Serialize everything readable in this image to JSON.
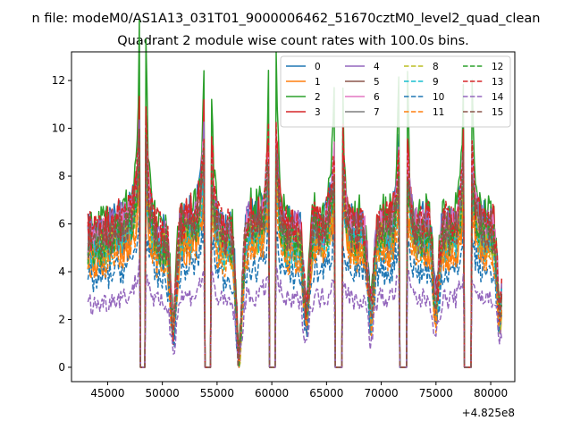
{
  "chart_data": {
    "type": "line",
    "suptitle": "n file: modeM0/AS1A13_031T01_9000006462_51670cztM0_level2_quad_clean",
    "title": "Quadrant 2 module wise count rates with 100.0s bins.",
    "xlabel": "",
    "ylabel": "",
    "x_offset_label": "+4.825e8",
    "xlim": [
      41700,
      82200
    ],
    "ylim": [
      -0.6,
      13.2
    ],
    "x_ticks": [
      45000,
      50000,
      55000,
      60000,
      65000,
      70000,
      75000,
      80000
    ],
    "x_tick_labels": [
      "45000",
      "50000",
      "55000",
      "60000",
      "65000",
      "70000",
      "75000",
      "80000"
    ],
    "y_ticks": [
      0,
      2,
      4,
      6,
      8,
      10,
      12
    ],
    "y_tick_labels": [
      "0",
      "2",
      "4",
      "6",
      "8",
      "10",
      "12"
    ],
    "grid": false,
    "legend_placement": "top-right",
    "legend_columns": 4,
    "bin_width_s": 100,
    "gaps": [
      [
        47950,
        48450
      ],
      [
        53850,
        54400
      ],
      [
        59800,
        60350
      ],
      [
        65800,
        66400
      ],
      [
        71700,
        72300
      ],
      [
        77600,
        78200
      ]
    ],
    "dips": [
      [
        51000,
        0.3
      ],
      [
        57000,
        0.05
      ],
      [
        63150,
        0.35
      ],
      [
        69050,
        0.35
      ],
      [
        75000,
        0.4
      ],
      [
        80850,
        0.35
      ]
    ],
    "series": [
      {
        "name": "0",
        "color": "#1f77b4",
        "dash": "solid",
        "level": 5.9,
        "peak": 1.35
      },
      {
        "name": "1",
        "color": "#ff7f0e",
        "dash": "solid",
        "level": 4.7,
        "peak": 1.3
      },
      {
        "name": "2",
        "color": "#2ca02c",
        "dash": "solid",
        "level": 6.2,
        "peak": 1.75
      },
      {
        "name": "3",
        "color": "#d62728",
        "dash": "solid",
        "level": 5.8,
        "peak": 1.45
      },
      {
        "name": "4",
        "color": "#9467bd",
        "dash": "solid",
        "level": 5.7,
        "peak": 1.4
      },
      {
        "name": "5",
        "color": "#8c564b",
        "dash": "solid",
        "level": 5.3,
        "peak": 1.35
      },
      {
        "name": "6",
        "color": "#e377c2",
        "dash": "solid",
        "level": 5.6,
        "peak": 1.4
      },
      {
        "name": "7",
        "color": "#7f7f7f",
        "dash": "solid",
        "level": 5.2,
        "peak": 1.3
      },
      {
        "name": "8",
        "color": "#bcbd22",
        "dash": "dashed",
        "level": 5.1,
        "peak": 1.3
      },
      {
        "name": "9",
        "color": "#17becf",
        "dash": "dashed",
        "level": 5.0,
        "peak": 1.3
      },
      {
        "name": "10",
        "color": "#1f77b4",
        "dash": "dashed",
        "level": 3.9,
        "peak": 1.25
      },
      {
        "name": "11",
        "color": "#ff7f0e",
        "dash": "dashed",
        "level": 4.6,
        "peak": 1.3
      },
      {
        "name": "12",
        "color": "#2ca02c",
        "dash": "dashed",
        "level": 5.4,
        "peak": 1.4
      },
      {
        "name": "13",
        "color": "#d62728",
        "dash": "dashed",
        "level": 5.9,
        "peak": 1.45
      },
      {
        "name": "14",
        "color": "#9467bd",
        "dash": "dashed",
        "level": 2.8,
        "peak": 1.2
      },
      {
        "name": "15",
        "color": "#8c564b",
        "dash": "dashed",
        "level": 5.5,
        "peak": 1.35
      }
    ]
  }
}
